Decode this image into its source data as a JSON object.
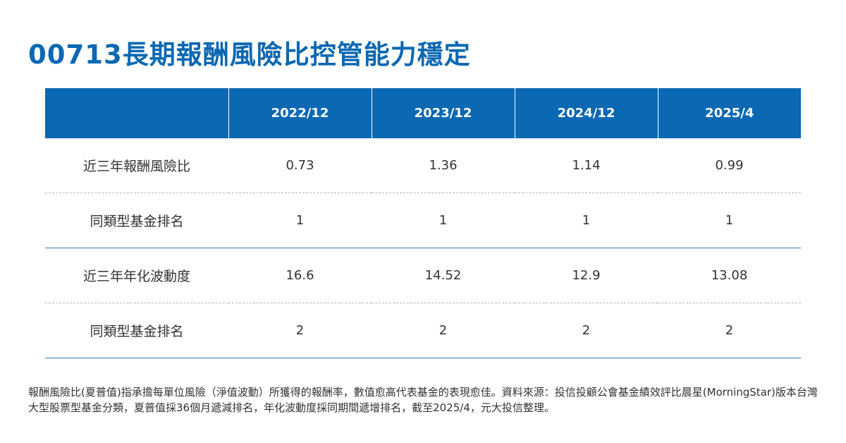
{
  "title": "00713長期報酬風險比控管能力穩定",
  "table": {
    "headers": [
      "",
      "2022/12",
      "2023/12",
      "2024/12",
      "2025/4"
    ],
    "rows": [
      {
        "label": "近三年報酬風險比",
        "values": [
          "0.73",
          "1.36",
          "1.14",
          "0.99"
        ]
      },
      {
        "label": "同類型基金排名",
        "values": [
          "1",
          "1",
          "1",
          "1"
        ]
      },
      {
        "label": "近三年年化波動度",
        "values": [
          "16.6",
          "14.52",
          "12.9",
          "13.08"
        ]
      },
      {
        "label": "同類型基金排名",
        "values": [
          "2",
          "2",
          "2",
          "2"
        ]
      }
    ]
  },
  "footnote": "報酬風險比(夏普值)指承擔每單位風險（淨值波動）所獲得的報酬率，數值愈高代表基金的表現愈佳。資料來源：投信投顧公會基金績效評比晨星(MorningStar)版本台灣大型股票型基金分類，夏普值採36個月遞減排名，年化波動度採同期間遞增排名，截至2025/4，元大投信整理。",
  "colors": {
    "accent": "#0b68b3",
    "text": "#333333",
    "divider_solid": "#2f7ab5",
    "divider_dashed": "#b3b3b3"
  }
}
